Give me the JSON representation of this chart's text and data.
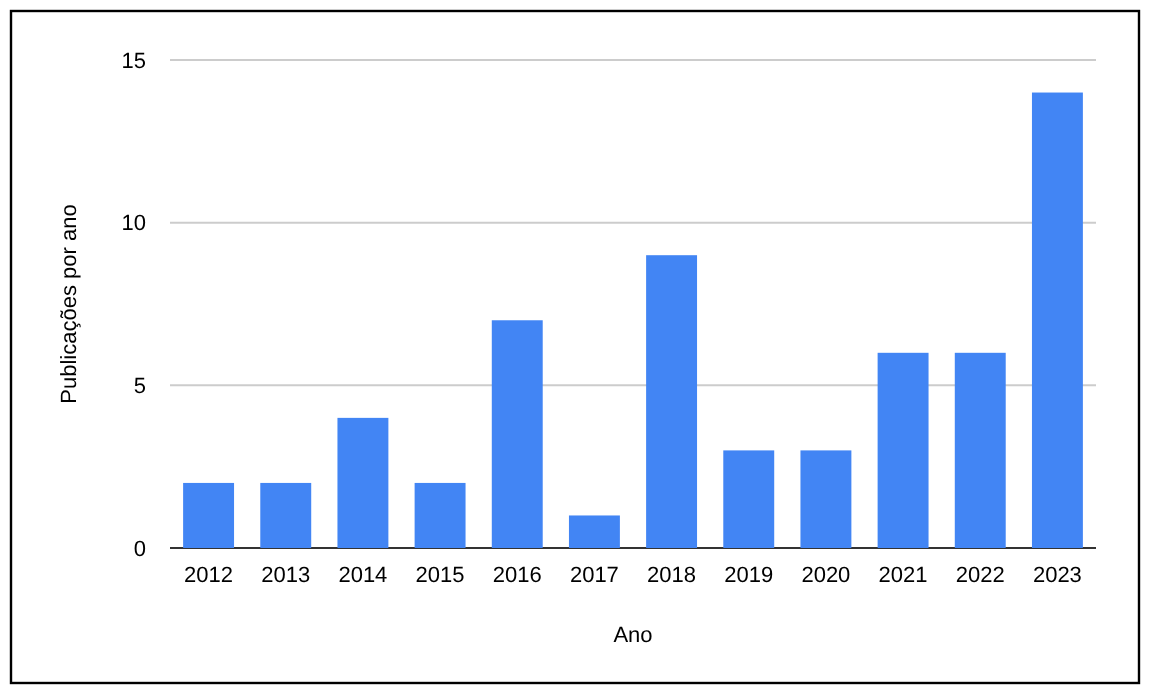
{
  "chart_data": {
    "type": "bar",
    "xlabel": "Ano",
    "ylabel": "Publicações por ano",
    "categories": [
      "2012",
      "2013",
      "2014",
      "2015",
      "2016",
      "2017",
      "2018",
      "2019",
      "2020",
      "2021",
      "2022",
      "2023"
    ],
    "values": [
      2,
      2,
      4,
      2,
      7,
      1,
      9,
      3,
      3,
      6,
      6,
      14
    ],
    "color": "#4285f4",
    "ylim": [
      0,
      15
    ],
    "yticks": [
      0,
      5,
      10,
      15
    ],
    "grid": "y"
  }
}
